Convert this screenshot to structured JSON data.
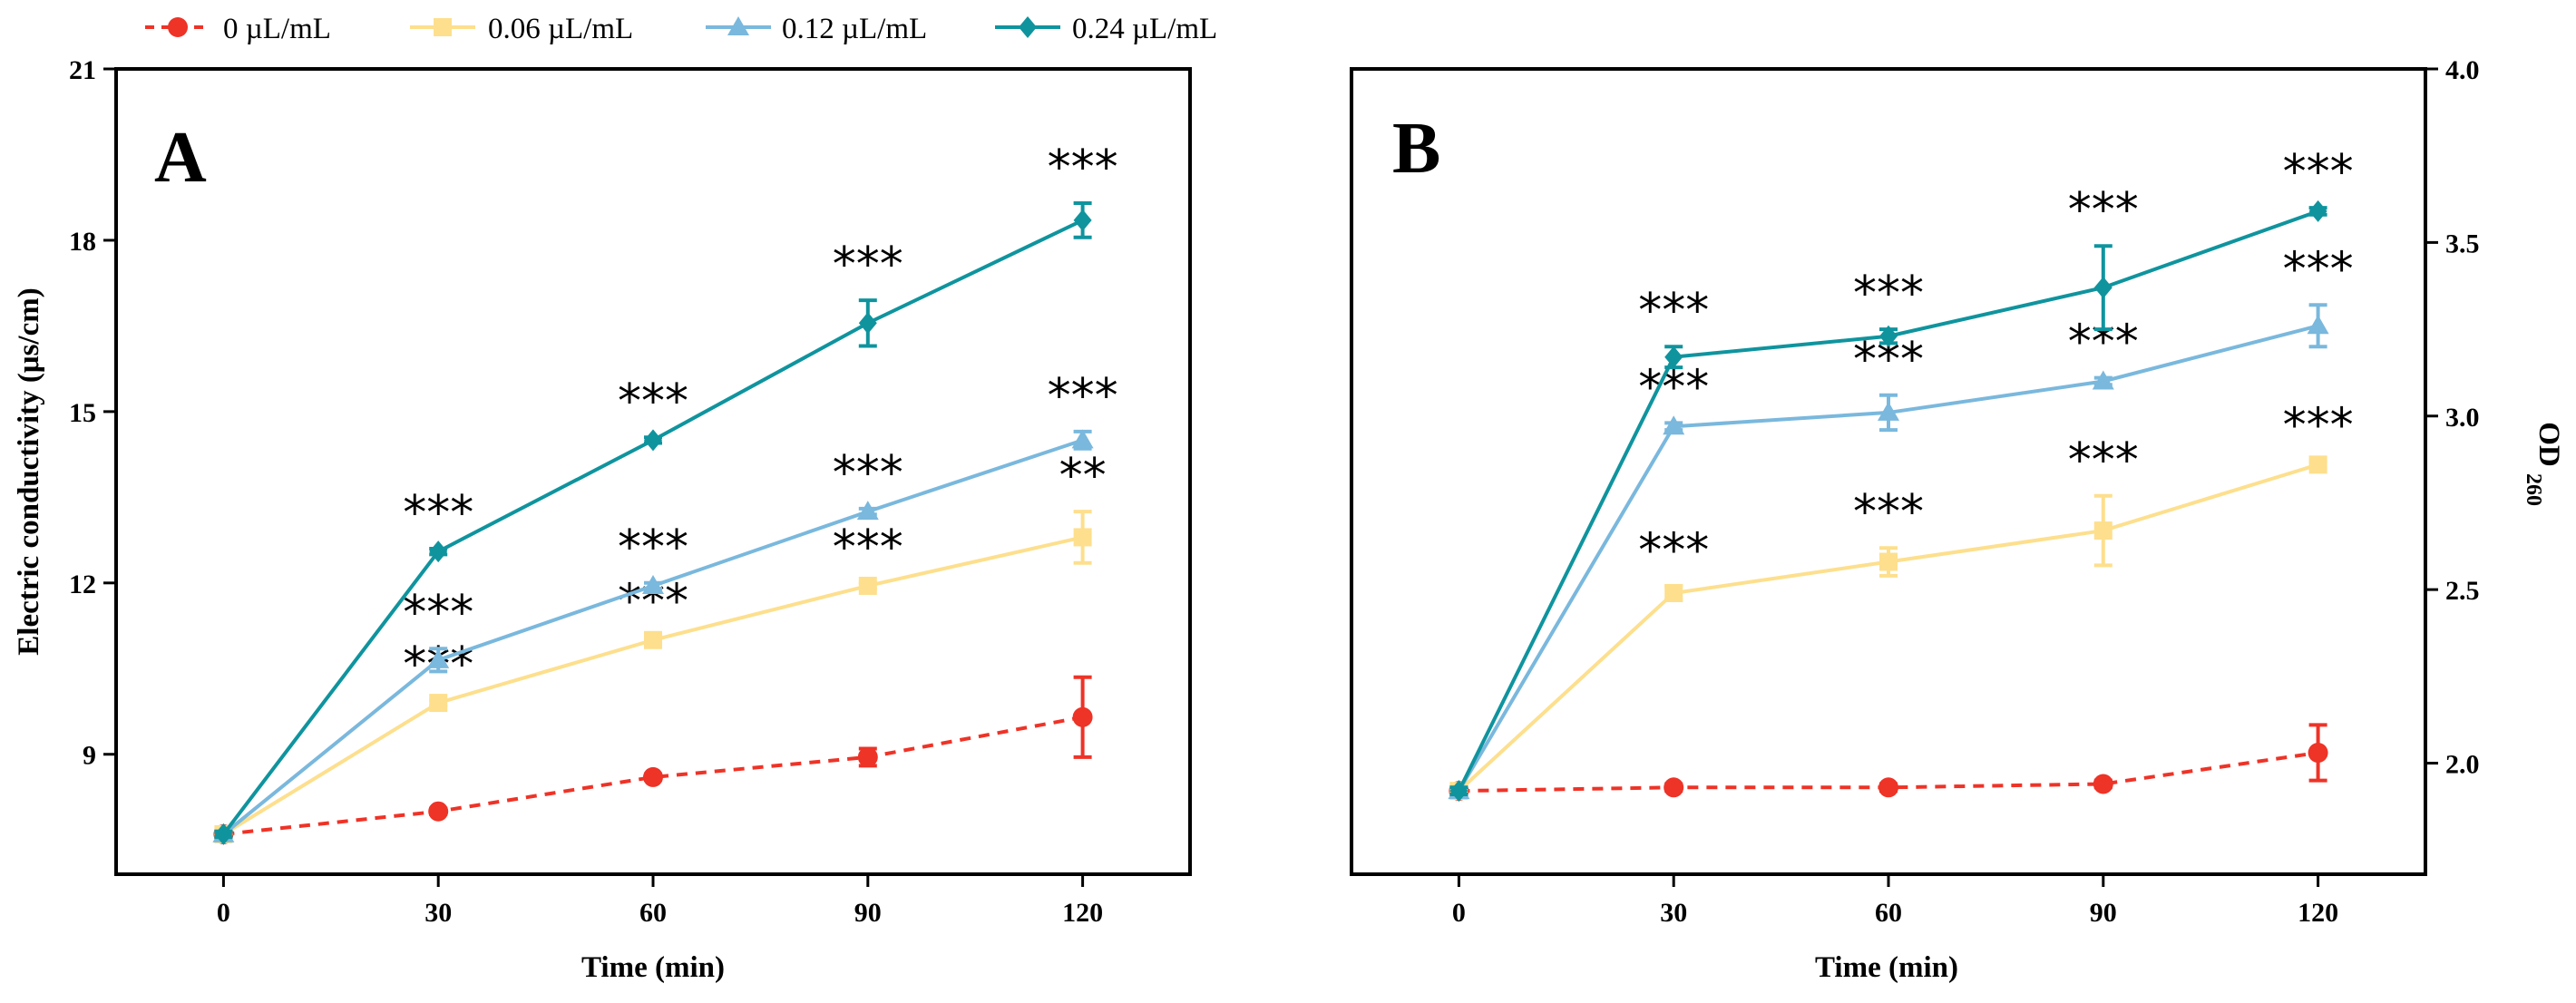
{
  "legend": [
    {
      "label": "0 µL/mL",
      "color": "#ee3327",
      "marker": "circle",
      "dash": true
    },
    {
      "label": "0.06 µL/mL",
      "color": "#fddf8d",
      "marker": "square",
      "dash": false
    },
    {
      "label": "0.12 µL/mL",
      "color": "#7ab8dd",
      "marker": "triangle",
      "dash": false
    },
    {
      "label": "0.24 µL/mL",
      "color": "#0f949e",
      "marker": "diamond",
      "dash": false
    }
  ],
  "chart_data": [
    {
      "panel": "A",
      "type": "line",
      "xlabel": "Time (min)",
      "ylabel": "Electric conductivity (μs/cm)",
      "x": [
        0,
        30,
        60,
        90,
        120
      ],
      "x_ticks": [
        "0",
        "30",
        "60",
        "90",
        "120"
      ],
      "xlim": [
        -15,
        135
      ],
      "ylim": [
        6.9,
        21
      ],
      "y_ticks": [
        9,
        12,
        15,
        18,
        21
      ],
      "y_tick_labels": [
        "9",
        "12",
        "15",
        "18",
        "21"
      ],
      "y_axis_side": "left",
      "series": [
        {
          "name": "0 µL/mL",
          "values": [
            7.6,
            8.0,
            8.6,
            8.95,
            9.65
          ],
          "errors": [
            0.05,
            0.05,
            0.05,
            0.15,
            0.7
          ],
          "significance": [
            "",
            "",
            "",
            "",
            ""
          ]
        },
        {
          "name": "0.06 µL/mL",
          "values": [
            7.6,
            9.9,
            11.0,
            11.95,
            12.8
          ],
          "errors": [
            0.05,
            0.05,
            0.05,
            0.05,
            0.45
          ],
          "significance": [
            "",
            "***",
            "***",
            "***",
            "**"
          ]
        },
        {
          "name": "0.12 µL/mL",
          "values": [
            7.6,
            10.65,
            11.95,
            13.25,
            14.5
          ],
          "errors": [
            0.05,
            0.2,
            0.05,
            0.05,
            0.15
          ],
          "significance": [
            "",
            "***",
            "***",
            "***",
            "***"
          ]
        },
        {
          "name": "0.24 µL/mL",
          "values": [
            7.6,
            12.55,
            14.5,
            16.55,
            18.35
          ],
          "errors": [
            0.05,
            0.05,
            0.05,
            0.4,
            0.3
          ],
          "significance": [
            "",
            "***",
            "***",
            "***",
            "***"
          ]
        }
      ]
    },
    {
      "panel": "B",
      "type": "line",
      "xlabel": "Time (min)",
      "ylabel": "OD",
      "ylabel_subscript": "260",
      "x": [
        0,
        30,
        60,
        90,
        120
      ],
      "x_ticks": [
        "0",
        "30",
        "60",
        "90",
        "120"
      ],
      "xlim": [
        -15,
        135
      ],
      "ylim": [
        1.68,
        4.0
      ],
      "y_ticks": [
        2.0,
        2.5,
        3.0,
        3.5,
        4.0
      ],
      "y_tick_labels": [
        "2.0",
        "2.5",
        "3.0",
        "3.5",
        "4.0"
      ],
      "y_axis_side": "right",
      "series": [
        {
          "name": "0 µL/mL",
          "values": [
            1.92,
            1.93,
            1.93,
            1.94,
            2.03
          ],
          "errors": [
            0.01,
            0.01,
            0.01,
            0.01,
            0.08
          ],
          "significance": [
            "",
            "",
            "",
            "",
            ""
          ]
        },
        {
          "name": "0.06 µL/mL",
          "values": [
            1.92,
            2.49,
            2.58,
            2.67,
            2.86
          ],
          "errors": [
            0.01,
            0.02,
            0.04,
            0.1,
            0.01
          ],
          "significance": [
            "",
            "***",
            "***",
            "***",
            "***"
          ]
        },
        {
          "name": "0.12 µL/mL",
          "values": [
            1.92,
            2.97,
            3.01,
            3.1,
            3.26
          ],
          "errors": [
            0.01,
            0.01,
            0.05,
            0.01,
            0.06
          ],
          "significance": [
            "",
            "***",
            "***",
            "***",
            "***"
          ]
        },
        {
          "name": "0.24 µL/mL",
          "values": [
            1.92,
            3.17,
            3.23,
            3.37,
            3.59
          ],
          "errors": [
            0.01,
            0.03,
            0.02,
            0.12,
            0.01
          ],
          "significance": [
            "",
            "***",
            "***",
            "***",
            "***"
          ]
        }
      ]
    }
  ]
}
